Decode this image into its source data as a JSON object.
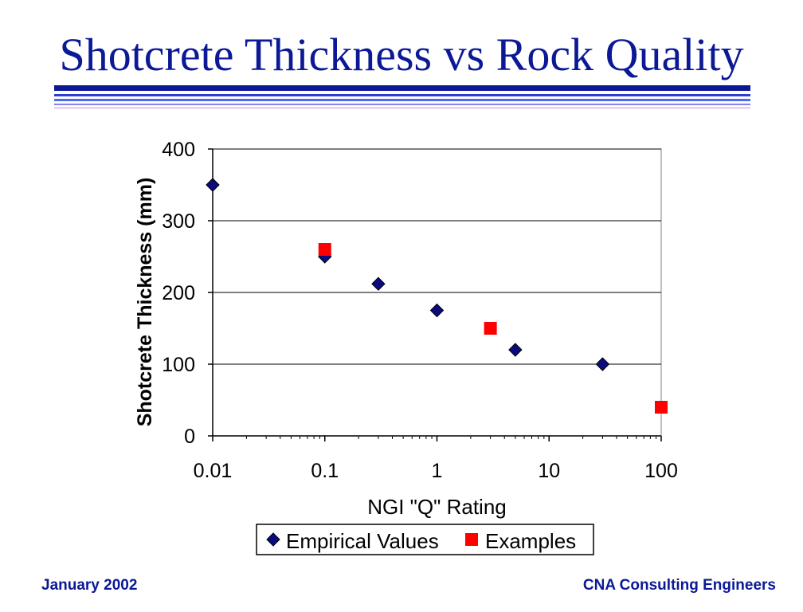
{
  "slide": {
    "title": "Shotcrete Thickness vs Rock Quality",
    "footer_left": "January 2002",
    "footer_right": "CNA Consulting Engineers",
    "colors": {
      "text_blue": "#0b1996"
    }
  },
  "chart_data": {
    "type": "scatter",
    "title": "",
    "xlabel": "NGI \"Q\" Rating",
    "ylabel": "Shotcrete Thickness (mm)",
    "x_scale": "log",
    "xlim": [
      0.01,
      100
    ],
    "ylim": [
      0,
      400
    ],
    "x_ticks": [
      0.01,
      0.1,
      1,
      10,
      100
    ],
    "x_tick_labels": [
      "0.01",
      "0.1",
      "1",
      "10",
      "100"
    ],
    "y_ticks": [
      0,
      100,
      200,
      300,
      400
    ],
    "y_tick_labels": [
      "0",
      "100",
      "200",
      "300",
      "400"
    ],
    "grid": "horizontal",
    "legend_position": "bottom",
    "series": [
      {
        "name": "Empirical Values",
        "marker": "diamond",
        "color": "#0b0b80",
        "x": [
          0.01,
          0.1,
          0.3,
          1,
          5,
          30
        ],
        "y": [
          350,
          250,
          212,
          175,
          120,
          100
        ]
      },
      {
        "name": "Examples",
        "marker": "square",
        "color": "#ff0000",
        "x": [
          0.1,
          3,
          100
        ],
        "y": [
          260,
          150,
          40
        ]
      }
    ]
  }
}
